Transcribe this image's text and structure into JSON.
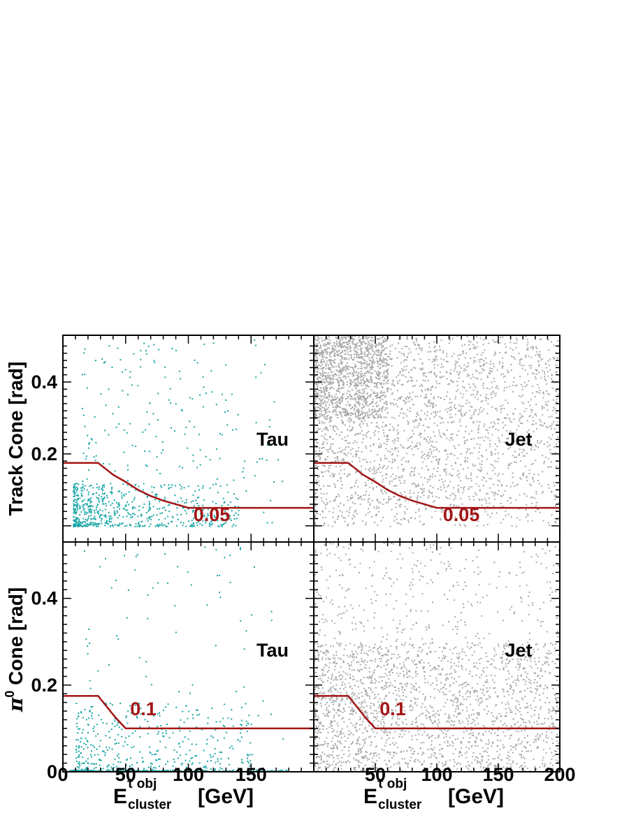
{
  "colors": {
    "tau_points": "#1aa6a6",
    "jet_points": "#a9a9a9",
    "cut_line": "#a31515",
    "frame": "#000000"
  },
  "chart_data": {
    "type": "scatter",
    "x_range": [
      0,
      200
    ],
    "y_range_top": [
      0,
      0.53
    ],
    "y_range_bottom": [
      0,
      0.53
    ],
    "x_ticks": [
      0,
      50,
      100,
      150,
      200
    ],
    "x_tick_labels_left": [
      "0",
      "50",
      "100",
      "150"
    ],
    "x_tick_labels_right": [
      "50",
      "100",
      "150",
      "200"
    ],
    "y_ticks_top": [
      0.2,
      0.4
    ],
    "y_tick_labels_top": [
      "0.2",
      "0.4"
    ],
    "y_ticks_bottom": [
      0,
      0.2,
      0.4
    ],
    "y_tick_labels_bottom": [
      "0",
      "0.2",
      "0.4"
    ],
    "ylabel_top": "Track Cone  [rad]",
    "ylabel_bottom_symbol": "π",
    "ylabel_bottom_sup": "0",
    "ylabel_bottom_rest": " Cone  [rad]",
    "xlabel": {
      "main": "E",
      "sup": "τ obj",
      "sub": "cluster",
      "unit": "[GeV]"
    },
    "panels": [
      {
        "id": "track-tau",
        "label": "Tau",
        "cut_label": "0.05",
        "cut_curve": [
          [
            0,
            0.175
          ],
          [
            28,
            0.175
          ],
          [
            40,
            0.142
          ],
          [
            50,
            0.122
          ],
          [
            60,
            0.1
          ],
          [
            70,
            0.083
          ],
          [
            80,
            0.07
          ],
          [
            90,
            0.06
          ],
          [
            100,
            0.05
          ],
          [
            200,
            0.05
          ]
        ],
        "clusters": [
          {
            "n": 620,
            "x": [
              8,
              140
            ],
            "y": [
              0.0,
              0.12
            ],
            "x_bias": 2.0,
            "y_bias": 1.6,
            "seed": 11
          },
          {
            "n": 230,
            "x": [
              15,
              175
            ],
            "y": [
              0.0,
              0.52
            ],
            "x_bias": 1.4,
            "y_bias": 1.0,
            "seed": 12
          }
        ]
      },
      {
        "id": "track-jet",
        "label": "Jet",
        "cut_label": "0.05",
        "cut_curve": [
          [
            0,
            0.175
          ],
          [
            28,
            0.175
          ],
          [
            40,
            0.142
          ],
          [
            50,
            0.122
          ],
          [
            60,
            0.1
          ],
          [
            70,
            0.083
          ],
          [
            80,
            0.07
          ],
          [
            90,
            0.06
          ],
          [
            100,
            0.05
          ],
          [
            200,
            0.05
          ]
        ],
        "clusters": [
          {
            "n": 2600,
            "x": [
              0,
              200
            ],
            "y": [
              0.0,
              0.53
            ],
            "x_bias": 1.3,
            "y_bias": 0.85,
            "seed": 21
          },
          {
            "n": 900,
            "x": [
              0,
              60
            ],
            "y": [
              0.3,
              0.53
            ],
            "x_bias": 1.0,
            "y_bias": 1.0,
            "seed": 22
          }
        ]
      },
      {
        "id": "pi0-tau",
        "label": "Tau",
        "cut_label": "0.1",
        "cut_curve": [
          [
            0,
            0.175
          ],
          [
            28,
            0.175
          ],
          [
            35,
            0.15
          ],
          [
            42,
            0.125
          ],
          [
            50,
            0.1
          ],
          [
            200,
            0.1
          ]
        ],
        "clusters": [
          {
            "n": 420,
            "x": [
              5,
              180
            ],
            "y": [
              0.0,
              0.005
            ],
            "x_bias": 1.5,
            "y_bias": 1.0,
            "seed": 31
          },
          {
            "n": 380,
            "x": [
              10,
              150
            ],
            "y": [
              0.0,
              0.16
            ],
            "x_bias": 1.5,
            "y_bias": 1.3,
            "seed": 32
          },
          {
            "n": 90,
            "x": [
              15,
              175
            ],
            "y": [
              0.0,
              0.52
            ],
            "x_bias": 1.3,
            "y_bias": 1.0,
            "seed": 33
          }
        ]
      },
      {
        "id": "pi0-jet",
        "label": "Jet",
        "cut_label": "0.1",
        "cut_curve": [
          [
            0,
            0.175
          ],
          [
            28,
            0.175
          ],
          [
            35,
            0.15
          ],
          [
            42,
            0.125
          ],
          [
            50,
            0.1
          ],
          [
            200,
            0.1
          ]
        ],
        "clusters": [
          {
            "n": 1800,
            "x": [
              0,
              200
            ],
            "y": [
              0.0,
              0.3
            ],
            "x_bias": 1.25,
            "y_bias": 1.0,
            "seed": 41
          },
          {
            "n": 700,
            "x": [
              0,
              200
            ],
            "y": [
              0.0,
              0.53
            ],
            "x_bias": 1.3,
            "y_bias": 0.9,
            "seed": 42
          }
        ]
      }
    ]
  }
}
